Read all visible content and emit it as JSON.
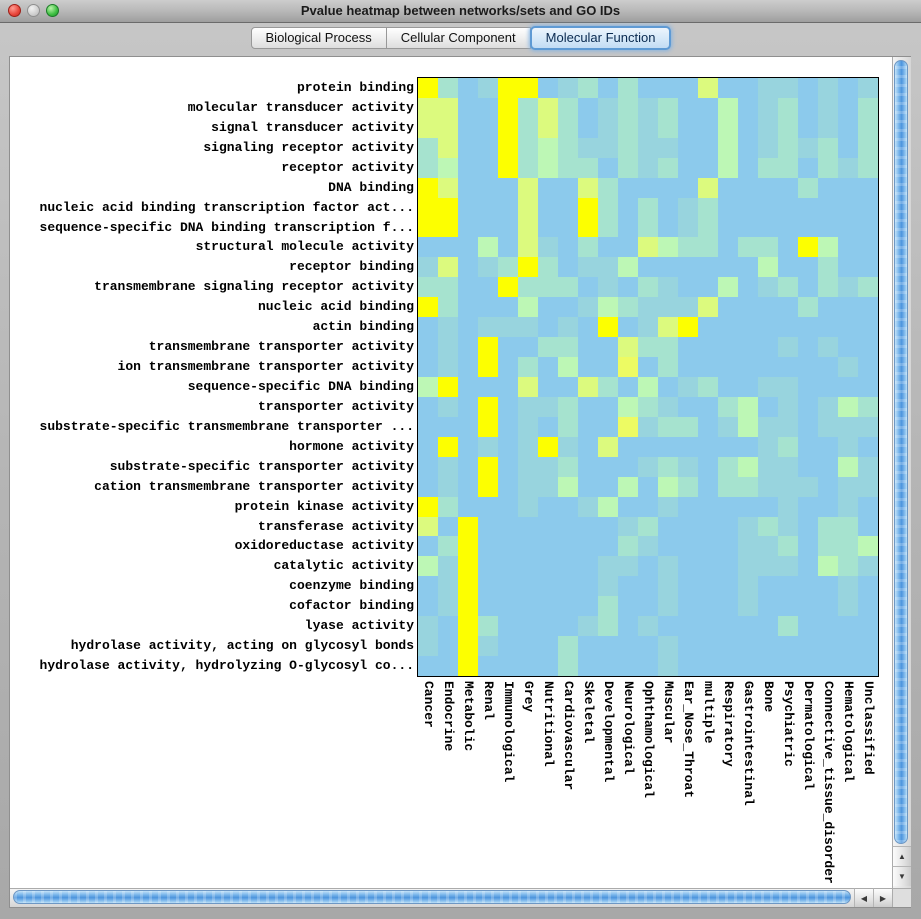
{
  "window": {
    "title": "Pvalue heatmap between networks/sets and GO IDs"
  },
  "tabs": [
    {
      "label": "Biological Process",
      "selected": false
    },
    {
      "label": "Cellular Component",
      "selected": false
    },
    {
      "label": "Molecular Function",
      "selected": true
    }
  ],
  "scrollbars": {
    "up_icon": "▲",
    "down_icon": "▼",
    "left_icon": "◀",
    "right_icon": "▶"
  },
  "chart_data": {
    "type": "heatmap",
    "rows": [
      "protein binding",
      "molecular transducer activity",
      "signal transducer activity",
      "signaling receptor activity",
      "receptor activity",
      "DNA binding",
      "nucleic acid binding transcription factor act...",
      "sequence-specific DNA binding transcription f...",
      "structural molecule activity",
      "receptor binding",
      "transmembrane signaling receptor activity",
      "nucleic acid binding",
      "actin binding",
      "transmembrane transporter activity",
      "ion transmembrane transporter activity",
      "sequence-specific DNA binding",
      "transporter activity",
      "substrate-specific transmembrane transporter ...",
      "hormone activity",
      "substrate-specific transporter activity",
      "cation transmembrane transporter activity",
      "protein kinase activity",
      "transferase activity",
      "oxidoreductase activity",
      "catalytic activity",
      "coenzyme binding",
      "cofactor binding",
      "lyase activity",
      "hydrolase activity, acting on glycosyl bonds",
      "hydrolase activity, hydrolyzing O-glycosyl co..."
    ],
    "columns": [
      "Cancer",
      "Endocrine",
      "Metabolic",
      "Renal",
      "Immunological",
      "Grey",
      "Nutritional",
      "Cardiovascular",
      "Skeletal",
      "Developmental",
      "Neurological",
      "Ophthamological",
      "Muscular",
      "Ear_Nose_Throat",
      "multiple",
      "Respiratory",
      "Gastrointestinal",
      "Bone",
      "Psychiatric",
      "Dermatological",
      "Connective_tissue_disorder",
      "Hematological",
      "Unclassified"
    ],
    "palette": {
      "0": "#8CCAEC",
      "1": "#98D4DE",
      "2": "#A6E3CF",
      "3": "#BDF7B5",
      "4": "#DCFA7E",
      "5": "#FDFF00",
      "6": "#EDFB63"
    },
    "cell_encoding": "one palette index per column, low(0,blue) to high(5,yellow)",
    "cells": [
      "52015501202000400110101",
      "44005242012120030120102",
      "44005242012120030120102",
      "24005232112110030121202",
      "23005232202120030220212",
      "54000400420000400002000",
      "55000400520201200000000",
      "55000400520201200000000",
      "00030410200432202205300",
      "14012520113000000300200",
      "22005222010210030120212",
      "52000300132111400002000",
      "01011101050145000000000",
      "01050022004220000010100",
      "01050203006020000000010",
      "35000400420301200110000",
      "01050112003210023010132",
      "00050102006122013110111",
      "05010151040000000120010",
      "01050112000121023110031",
      "01050113003032022111011",
      "52000100130010000010010",
      "40500000001200001210220",
      "02500000002100001120223",
      "31500000011010001110321",
      "01500000010010001000010",
      "01500000020010001000010",
      "10520000120100000020000",
      "10510002000010000000000",
      "00500002000010000000000"
    ]
  }
}
